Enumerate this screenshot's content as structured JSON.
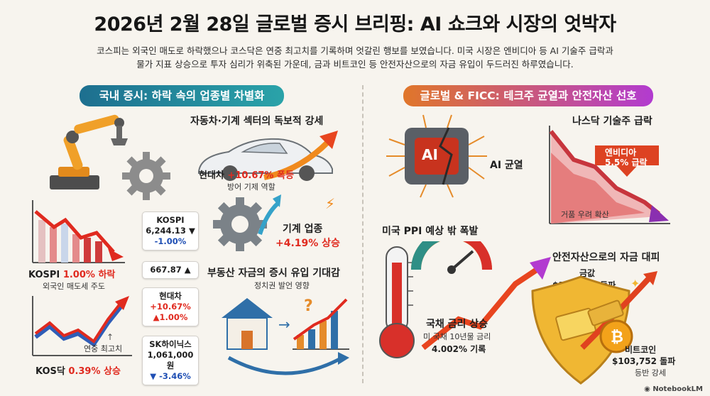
{
  "title": "2026년 2월 28일 글로벌 증시 브리핑: AI 쇼크와 시장의 엇박자",
  "subtitle": {
    "line1": "코스피는 외국인 매도로 하락했으나 코스닥은 연중 최고치를 기록하며 엇갈린 행보를 보였습니다. 미국 시장은 엔비디아 등 AI 기술주 급락과",
    "line2": "물가 지표 상승으로 투자 심리가 위축된 가운데, 금과 비트코인 등 안전자산으로의 자금 유입이 두드러진 하루였습니다."
  },
  "domestic": {
    "section_title": "국내 증시: 하락 속의 업종별 차별화",
    "kospi": {
      "name": "KOSPI",
      "change": "1.00% 하락",
      "note": "외국인 매도세 주도"
    },
    "kosdaq": {
      "name": "KOS닥",
      "change": "0.39% 상승",
      "note": "연중 최고치"
    },
    "cards": [
      {
        "line1": "KOSPI",
        "line2": "6,244.13 ▼",
        "line3": "-1.00%"
      },
      {
        "line1": "667.87 ▲"
      },
      {
        "line1": "현대차",
        "line2": "+10.67%",
        "line3": "▲1.00%"
      },
      {
        "line1": "SK하이닉스",
        "line2": "1,061,000원",
        "line3": "▼ -3.46%"
      }
    ],
    "auto": {
      "heading": "자동차·기계 섹터의 독보적 강세",
      "hyundai_name": "현대차",
      "hyundai_change": "+10.67% 폭등",
      "hyundai_note": "방어 기제 역할",
      "machine_name": "기계 업종",
      "machine_change": "+4.19% 상승"
    },
    "realestate": {
      "heading": "부동산 자금의 증시 유입 기대감",
      "note": "정치권 발언 영향"
    }
  },
  "global": {
    "section_title": "글로벌 & FICC: 테크주 균열과 안전자산 선호",
    "chip_text": "AI",
    "ai_crack": "AI 균열",
    "nasdaq": {
      "heading": "나스닥 기술주 급락",
      "nvidia_line1": "엔비디아",
      "nvidia_line2": "5.5% 급락",
      "bubble": "거품 우려 확산"
    },
    "ppi": {
      "heading": "미국 PPI 예상 밖 폭발",
      "rate_heading": "국채 금리 상승",
      "rate_note": "미 국채 10년물 금리",
      "rate_value": "4.002% 기록"
    },
    "safe": {
      "heading": "안전자산으로의 자금 대피",
      "gold_name": "금값",
      "gold_value": "$103,000 돌파",
      "btc_name": "비트코인",
      "btc_value": "$103,752 돌파",
      "btc_note": "등반 강세"
    }
  },
  "footer": "NotebookLM",
  "colors": {
    "up": "#e02a1f",
    "down": "#1f4fb4",
    "teal": "#1d6f8f",
    "orange": "#e0762a",
    "purple": "#b23bd0"
  }
}
